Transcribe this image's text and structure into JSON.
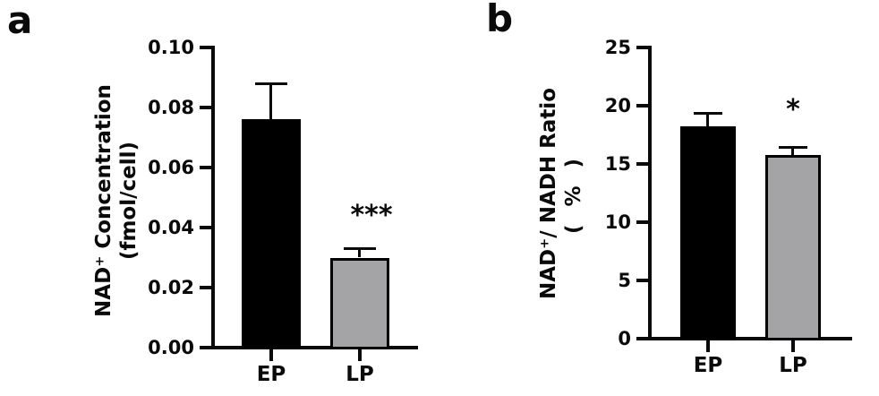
{
  "figure": {
    "background": "#ffffff",
    "text_color": "#0a0a0a"
  },
  "chart_data": [
    {
      "type": "bar",
      "panel_label": "a",
      "title": "",
      "xlabel": "",
      "ylabel_lines": [
        "NAD⁺ Concentration",
        "(fmol/cell)"
      ],
      "categories": [
        "EP",
        "LP"
      ],
      "values": [
        0.076,
        0.03
      ],
      "errors_plus": [
        0.012,
        0.003
      ],
      "bar_colors": [
        "#000000",
        "#a4a4a6"
      ],
      "bar_border_color": "#000000",
      "significance": [
        "",
        "***"
      ],
      "ylim": [
        0,
        0.1
      ],
      "yticks": [
        0,
        0.02,
        0.04,
        0.06,
        0.08,
        0.1
      ],
      "ytick_labels": [
        "0.00",
        "0.02",
        "0.04",
        "0.06",
        "0.08",
        "0.10"
      ],
      "grid": false,
      "legend": "none"
    },
    {
      "type": "bar",
      "panel_label": "b",
      "title": "",
      "xlabel": "",
      "ylabel_lines": [
        "NAD⁺/ NADH Ratio",
        "( % )"
      ],
      "categories": [
        "EP",
        "LP"
      ],
      "values": [
        18.2,
        15.8
      ],
      "errors_plus": [
        1.2,
        0.7
      ],
      "bar_colors": [
        "#000000",
        "#a4a4a6"
      ],
      "bar_border_color": "#000000",
      "significance": [
        "",
        "*"
      ],
      "ylim": [
        0,
        25
      ],
      "yticks": [
        0,
        5,
        10,
        15,
        20,
        25
      ],
      "ytick_labels": [
        "0",
        "5",
        "10",
        "15",
        "20",
        "25"
      ],
      "grid": false,
      "legend": "none"
    }
  ]
}
